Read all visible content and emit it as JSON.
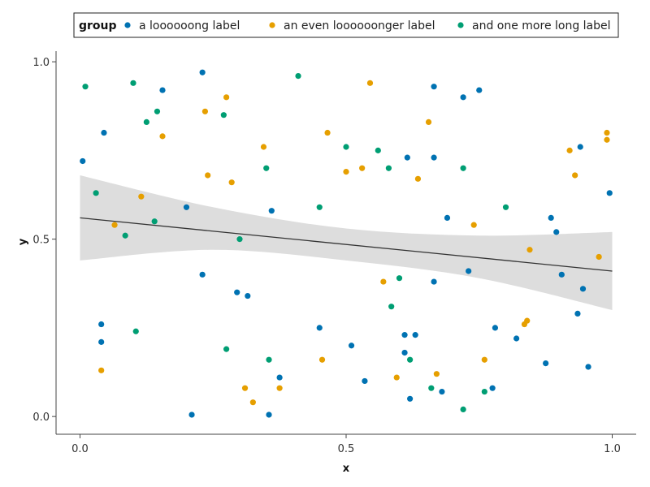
{
  "chart_data": {
    "type": "scatter",
    "title": "",
    "xlabel": "x",
    "ylabel": "y",
    "xlim": [
      -0.045,
      1.045
    ],
    "ylim": [
      -0.05,
      1.03
    ],
    "xticks": [
      0.0,
      0.5,
      1.0
    ],
    "yticks": [
      0.0,
      0.5,
      1.0
    ],
    "xtick_labels": [
      "0.0",
      "0.5",
      "1.0"
    ],
    "ytick_labels": [
      "0.0",
      "0.5",
      "1.0"
    ],
    "grid": false,
    "legend": {
      "title": "group",
      "placement": "top-center"
    },
    "series": [
      {
        "name": "a loooooong label",
        "color": "#0072B2",
        "points": [
          [
            0.005,
            0.72
          ],
          [
            0.04,
            0.21
          ],
          [
            0.04,
            0.26
          ],
          [
            0.045,
            0.8
          ],
          [
            0.155,
            0.92
          ],
          [
            0.2,
            0.59
          ],
          [
            0.21,
            0.005
          ],
          [
            0.23,
            0.97
          ],
          [
            0.23,
            0.4
          ],
          [
            0.295,
            0.35
          ],
          [
            0.315,
            0.34
          ],
          [
            0.355,
            0.005
          ],
          [
            0.36,
            0.58
          ],
          [
            0.375,
            0.11
          ],
          [
            0.45,
            0.25
          ],
          [
            0.51,
            0.2
          ],
          [
            0.535,
            0.1
          ],
          [
            0.61,
            0.23
          ],
          [
            0.61,
            0.18
          ],
          [
            0.615,
            0.73
          ],
          [
            0.62,
            0.05
          ],
          [
            0.63,
            0.23
          ],
          [
            0.665,
            0.93
          ],
          [
            0.665,
            0.73
          ],
          [
            0.665,
            0.38
          ],
          [
            0.68,
            0.07
          ],
          [
            0.69,
            0.56
          ],
          [
            0.72,
            0.9
          ],
          [
            0.73,
            0.41
          ],
          [
            0.75,
            0.92
          ],
          [
            0.775,
            0.08
          ],
          [
            0.78,
            0.25
          ],
          [
            0.82,
            0.22
          ],
          [
            0.875,
            0.15
          ],
          [
            0.885,
            0.56
          ],
          [
            0.895,
            0.52
          ],
          [
            0.905,
            0.4
          ],
          [
            0.935,
            0.29
          ],
          [
            0.94,
            0.76
          ],
          [
            0.945,
            0.36
          ],
          [
            0.955,
            0.14
          ],
          [
            0.995,
            0.63
          ]
        ]
      },
      {
        "name": "an even loooooonger label",
        "color": "#E69F00",
        "points": [
          [
            0.04,
            0.13
          ],
          [
            0.065,
            0.54
          ],
          [
            0.115,
            0.62
          ],
          [
            0.155,
            0.79
          ],
          [
            0.235,
            0.86
          ],
          [
            0.24,
            0.68
          ],
          [
            0.275,
            0.9
          ],
          [
            0.285,
            0.66
          ],
          [
            0.31,
            0.08
          ],
          [
            0.325,
            0.04
          ],
          [
            0.345,
            0.76
          ],
          [
            0.375,
            0.08
          ],
          [
            0.455,
            0.16
          ],
          [
            0.465,
            0.8
          ],
          [
            0.5,
            0.69
          ],
          [
            0.53,
            0.7
          ],
          [
            0.545,
            0.94
          ],
          [
            0.57,
            0.38
          ],
          [
            0.595,
            0.11
          ],
          [
            0.635,
            0.67
          ],
          [
            0.655,
            0.83
          ],
          [
            0.67,
            0.12
          ],
          [
            0.74,
            0.54
          ],
          [
            0.76,
            0.16
          ],
          [
            0.835,
            0.26
          ],
          [
            0.84,
            0.27
          ],
          [
            0.845,
            0.47
          ],
          [
            0.92,
            0.75
          ],
          [
            0.93,
            0.68
          ],
          [
            0.975,
            0.45
          ],
          [
            0.99,
            0.78
          ],
          [
            0.99,
            0.8
          ]
        ]
      },
      {
        "name": "and one more long label",
        "color": "#009E73",
        "points": [
          [
            0.01,
            0.93
          ],
          [
            0.03,
            0.63
          ],
          [
            0.085,
            0.51
          ],
          [
            0.1,
            0.94
          ],
          [
            0.105,
            0.24
          ],
          [
            0.125,
            0.83
          ],
          [
            0.14,
            0.55
          ],
          [
            0.145,
            0.86
          ],
          [
            0.27,
            0.85
          ],
          [
            0.275,
            0.19
          ],
          [
            0.3,
            0.5
          ],
          [
            0.35,
            0.7
          ],
          [
            0.355,
            0.16
          ],
          [
            0.41,
            0.96
          ],
          [
            0.45,
            0.59
          ],
          [
            0.5,
            0.76
          ],
          [
            0.56,
            0.75
          ],
          [
            0.58,
            0.7
          ],
          [
            0.585,
            0.31
          ],
          [
            0.6,
            0.39
          ],
          [
            0.62,
            0.16
          ],
          [
            0.66,
            0.08
          ],
          [
            0.72,
            0.7
          ],
          [
            0.72,
            0.02
          ],
          [
            0.76,
            0.07
          ],
          [
            0.8,
            0.59
          ]
        ]
      }
    ],
    "regression": {
      "x": [
        0.0,
        1.0
      ],
      "y": [
        0.56,
        0.41
      ],
      "color": "#333333",
      "band_color": "#d9d9d9",
      "band": [
        {
          "x": 0.0,
          "lo": 0.44,
          "hi": 0.68
        },
        {
          "x": 0.25,
          "lo": 0.47,
          "hi": 0.59
        },
        {
          "x": 0.5,
          "lo": 0.44,
          "hi": 0.53
        },
        {
          "x": 0.75,
          "lo": 0.39,
          "hi": 0.51
        },
        {
          "x": 1.0,
          "lo": 0.3,
          "hi": 0.52
        }
      ]
    }
  }
}
